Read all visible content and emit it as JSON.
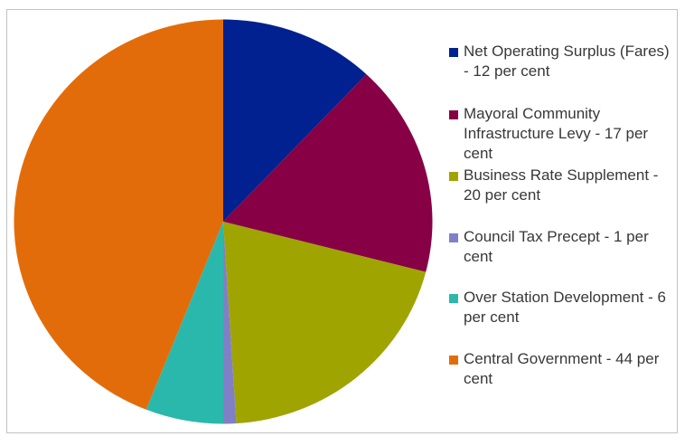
{
  "chart_data": {
    "type": "pie",
    "title": "",
    "unit": "per cent",
    "start_angle_deg": 0,
    "direction": "clockwise",
    "legend_position": "right",
    "background_color": "#FFFFFF",
    "frame_border_color": "#C2C2C2",
    "legend_text_color": "#383838",
    "slices": [
      {
        "name": "Net Operating Surplus (Fares)",
        "label": "Net Operating Surplus (Fares) - 12 per cent",
        "value": 12,
        "color": "#00218F"
      },
      {
        "name": "Mayoral Community Infrastructure Levy",
        "label": "Mayoral Community Infrastructure Levy - 17 per cent",
        "value": 17,
        "color": "#870045"
      },
      {
        "name": "Business Rate Supplement",
        "label": "Business Rate Supplement - 20 per cent",
        "value": 20,
        "color": "#9FA400"
      },
      {
        "name": "Council Tax Precept",
        "label": "Council Tax Precept - 1 per cent",
        "value": 1,
        "color": "#8080C6"
      },
      {
        "name": "Over Station Development",
        "label": "Over Station Development - 6 per cent",
        "value": 6,
        "color": "#2BB8AC"
      },
      {
        "name": "Central Government",
        "label": "Central Government - 44 per cent",
        "value": 44,
        "color": "#E36C0A"
      }
    ]
  }
}
